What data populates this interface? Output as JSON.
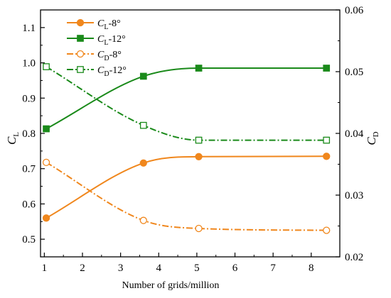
{
  "chart_data": {
    "type": "line",
    "title": "",
    "xlabel": "Number of grids/million",
    "ylabel_left": {
      "main": "C",
      "sub": "L"
    },
    "ylabel_right": {
      "main": "C",
      "sub": "D"
    },
    "xlim": [
      0.9,
      8.75
    ],
    "ylim_left": [
      0.45,
      1.15
    ],
    "ylim_right": [
      0.02,
      0.06
    ],
    "xticks": [
      1,
      2,
      3,
      4,
      5,
      6,
      7,
      8
    ],
    "yticks_left": [
      "0.5",
      "0.6",
      "0.7",
      "0.8",
      "0.9",
      "1.0",
      "1.1"
    ],
    "yticks_right": [
      "0.02",
      "0.03",
      "0.04",
      "0.05",
      "0.06"
    ],
    "grid": false,
    "legend_position": "top-left",
    "x": [
      1.05,
      3.6,
      5.05,
      8.4
    ],
    "series": [
      {
        "name": "-8°",
        "label_main": "C",
        "label_sub": "L",
        "label_tail": "-8°",
        "axis": "left",
        "values": [
          0.56,
          0.716,
          0.734,
          0.735
        ],
        "color": "#f0871d",
        "marker": "circle",
        "filled": true,
        "line": "solid"
      },
      {
        "name": "-12°",
        "label_main": "C",
        "label_sub": "L",
        "label_tail": "-12°",
        "axis": "left",
        "values": [
          0.813,
          0.962,
          0.985,
          0.985
        ],
        "color": "#1a8a1a",
        "marker": "square",
        "filled": true,
        "line": "solid"
      },
      {
        "name": "-8°",
        "label_main": "C",
        "label_sub": "D",
        "label_tail": "-8°",
        "axis": "right",
        "values": [
          0.0353,
          0.0259,
          0.0246,
          0.0243
        ],
        "color": "#f0871d",
        "marker": "circle",
        "filled": false,
        "line": "dashdot"
      },
      {
        "name": "-12°",
        "label_main": "C",
        "label_sub": "D",
        "label_tail": "-12°",
        "axis": "right",
        "values": [
          0.0508,
          0.0413,
          0.0389,
          0.0389
        ],
        "color": "#1a8a1a",
        "marker": "square",
        "filled": false,
        "line": "dashdot"
      }
    ]
  }
}
